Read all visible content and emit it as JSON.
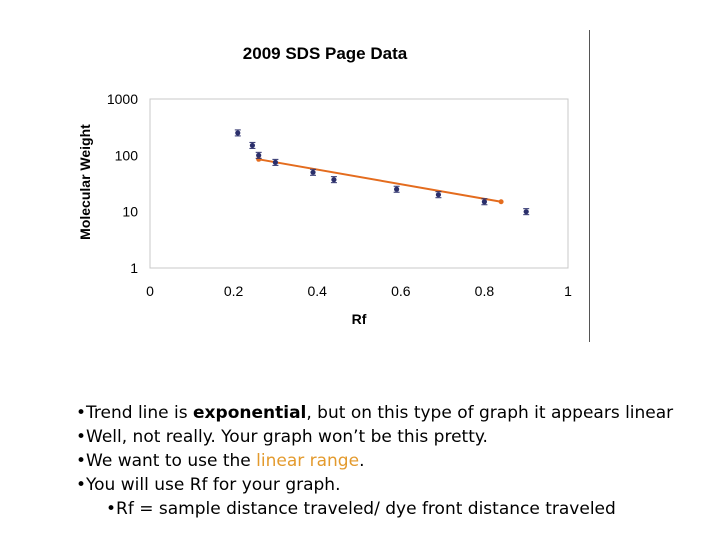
{
  "chart_data": {
    "type": "scatter",
    "title": "2009 SDS Page Data",
    "xlabel": "Rf",
    "ylabel": "Molecular Weight",
    "xlim": [
      0,
      1
    ],
    "ylim": [
      1,
      1000
    ],
    "yscale": "log",
    "x_ticks": [
      "0",
      "0.2",
      "0.4",
      "0.6",
      "0.8",
      "1"
    ],
    "y_ticks": [
      "1",
      "10",
      "100",
      "1000"
    ],
    "grid": false,
    "legend": "none",
    "points": [
      {
        "x": 0.21,
        "y": 250
      },
      {
        "x": 0.245,
        "y": 150
      },
      {
        "x": 0.26,
        "y": 100
      },
      {
        "x": 0.3,
        "y": 75
      },
      {
        "x": 0.39,
        "y": 50
      },
      {
        "x": 0.44,
        "y": 37
      },
      {
        "x": 0.59,
        "y": 25
      },
      {
        "x": 0.69,
        "y": 20
      },
      {
        "x": 0.8,
        "y": 15
      },
      {
        "x": 0.9,
        "y": 10
      }
    ],
    "trendline": {
      "type": "exponential",
      "x": [
        0.26,
        0.84
      ],
      "y": [
        85,
        15
      ]
    },
    "colors": {
      "points": "#2b2f6b",
      "trendline": "#e46c1e"
    }
  },
  "bullets": {
    "b1_pre": "Trend line is ",
    "b1_bold": "exponential",
    "b1_post": ", but on this type of graph it appears linear",
    "b2": "Well, not really.  Your graph won’t be this pretty.",
    "b3_pre": "We want to use the ",
    "b3_hl": "linear range",
    "b3_post": ".",
    "b4": "You will use Rf for your graph.",
    "b5": "Rf = sample distance traveled/ dye front distance traveled"
  }
}
